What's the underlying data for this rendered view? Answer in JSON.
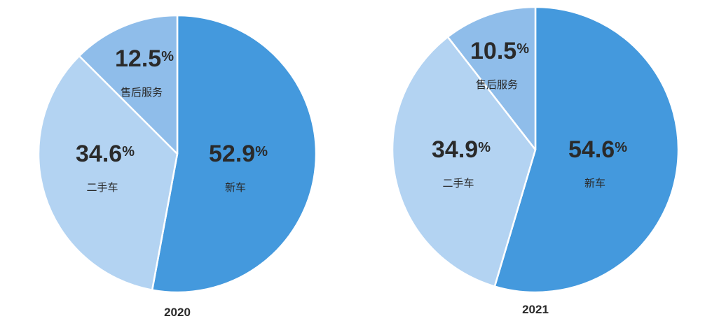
{
  "chart_data": [
    {
      "type": "pie",
      "year": "2020",
      "slices": [
        {
          "label": "新车",
          "value": 52.9,
          "display": "52.9",
          "color": "#4499dd"
        },
        {
          "label": "二手车",
          "value": 34.6,
          "display": "34.6",
          "color": "#b3d3f2"
        },
        {
          "label": "售后服务",
          "value": 12.5,
          "display": "12.5",
          "color": "#8fbdea"
        }
      ],
      "unit": "%"
    },
    {
      "type": "pie",
      "year": "2021",
      "slices": [
        {
          "label": "新车",
          "value": 54.6,
          "display": "54.6",
          "color": "#4499dd"
        },
        {
          "label": "二手车",
          "value": 34.9,
          "display": "34.9",
          "color": "#b3d3f2"
        },
        {
          "label": "售后服务",
          "value": 10.5,
          "display": "10.5",
          "color": "#8fbdea"
        }
      ],
      "unit": "%"
    }
  ]
}
